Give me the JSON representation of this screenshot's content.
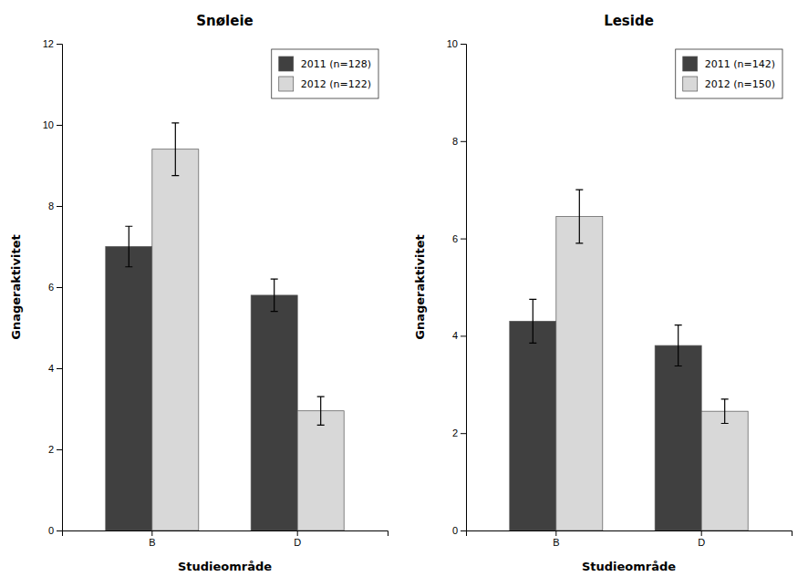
{
  "chart_data": [
    {
      "type": "bar",
      "title": "Snøleie",
      "xlabel": "Studieområde",
      "ylabel": "Gnageraktivitet",
      "categories": [
        "B",
        "D"
      ],
      "series": [
        {
          "name": "2011 (n=128)",
          "color": "#404040",
          "values": [
            7.0,
            5.8
          ],
          "errors": [
            0.5,
            0.4
          ]
        },
        {
          "name": "2012 (n=122)",
          "color": "#d8d8d8",
          "values": [
            9.4,
            2.95
          ],
          "errors": [
            0.65,
            0.35
          ]
        }
      ],
      "ylim": [
        0,
        12
      ],
      "yticks": [
        0,
        2,
        4,
        6,
        8,
        10,
        12
      ],
      "grid": false,
      "legend": "upper right"
    },
    {
      "type": "bar",
      "title": "Leside",
      "xlabel": "Studieområde",
      "ylabel": "Gnageraktivitet",
      "categories": [
        "B",
        "D"
      ],
      "series": [
        {
          "name": "2011 (n=142)",
          "color": "#404040",
          "values": [
            4.3,
            3.8
          ],
          "errors": [
            0.45,
            0.42
          ]
        },
        {
          "name": "2012 (n=150)",
          "color": "#d8d8d8",
          "values": [
            6.45,
            2.45
          ],
          "errors": [
            0.55,
            0.25
          ]
        }
      ],
      "ylim": [
        0,
        10
      ],
      "yticks": [
        0,
        2,
        4,
        6,
        8,
        10
      ],
      "grid": false,
      "legend": "upper right"
    }
  ]
}
